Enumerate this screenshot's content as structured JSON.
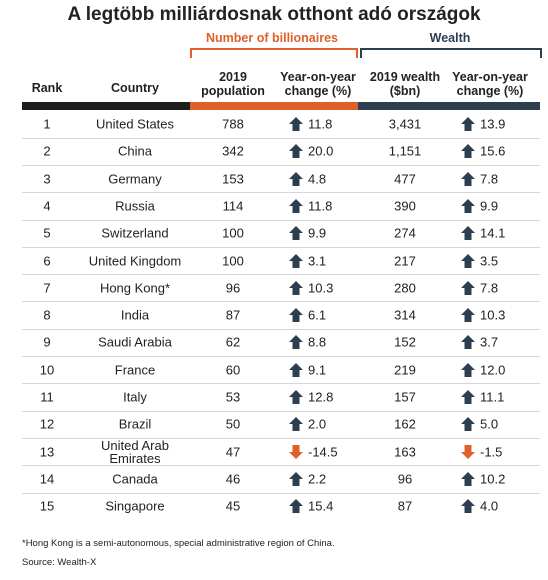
{
  "header": {
    "title": "A legtöbb milliárdosnak otthont adó országok"
  },
  "groups": [
    "Number of billionaires",
    "Wealth"
  ],
  "table": {
    "columns": [
      "Rank",
      "Country",
      "2019 population",
      "Year-on-year change (%)",
      "2019 wealth ($bn)",
      "Year-on-year change (%)"
    ],
    "rows": [
      [
        "1",
        "United States",
        "788",
        "11.8",
        "3,431",
        "13.9"
      ],
      [
        "2",
        "China",
        "342",
        "20.0",
        "1,151",
        "15.6"
      ],
      [
        "3",
        "Germany",
        "153",
        "4.8",
        "477",
        "7.8"
      ],
      [
        "4",
        "Russia",
        "114",
        "11.8",
        "390",
        "9.9"
      ],
      [
        "5",
        "Switzerland",
        "100",
        "9.9",
        "274",
        "14.1"
      ],
      [
        "6",
        "United Kingdom",
        "100",
        "3.1",
        "217",
        "3.5"
      ],
      [
        "7",
        "Hong Kong*",
        "96",
        "10.3",
        "280",
        "7.8"
      ],
      [
        "8",
        "India",
        "87",
        "6.1",
        "314",
        "10.3"
      ],
      [
        "9",
        "Saudi Arabia",
        "62",
        "8.8",
        "152",
        "3.7"
      ],
      [
        "10",
        "France",
        "60",
        "9.1",
        "219",
        "12.0"
      ],
      [
        "11",
        "Italy",
        "53",
        "12.8",
        "157",
        "11.1"
      ],
      [
        "12",
        "Brazil",
        "50",
        "2.0",
        "162",
        "5.0"
      ],
      [
        "13",
        "United Arab Emirates",
        "47",
        "-14.5",
        "163",
        "-1.5"
      ],
      [
        "14",
        "Canada",
        "46",
        "2.2",
        "96",
        "10.2"
      ],
      [
        "15",
        "Singapore",
        "45",
        "15.4",
        "87",
        "4.0"
      ]
    ]
  },
  "footnote": "*Hong Kong is a semi-autonomous, special administrative region of China.",
  "source": "Source: Wealth-X"
}
